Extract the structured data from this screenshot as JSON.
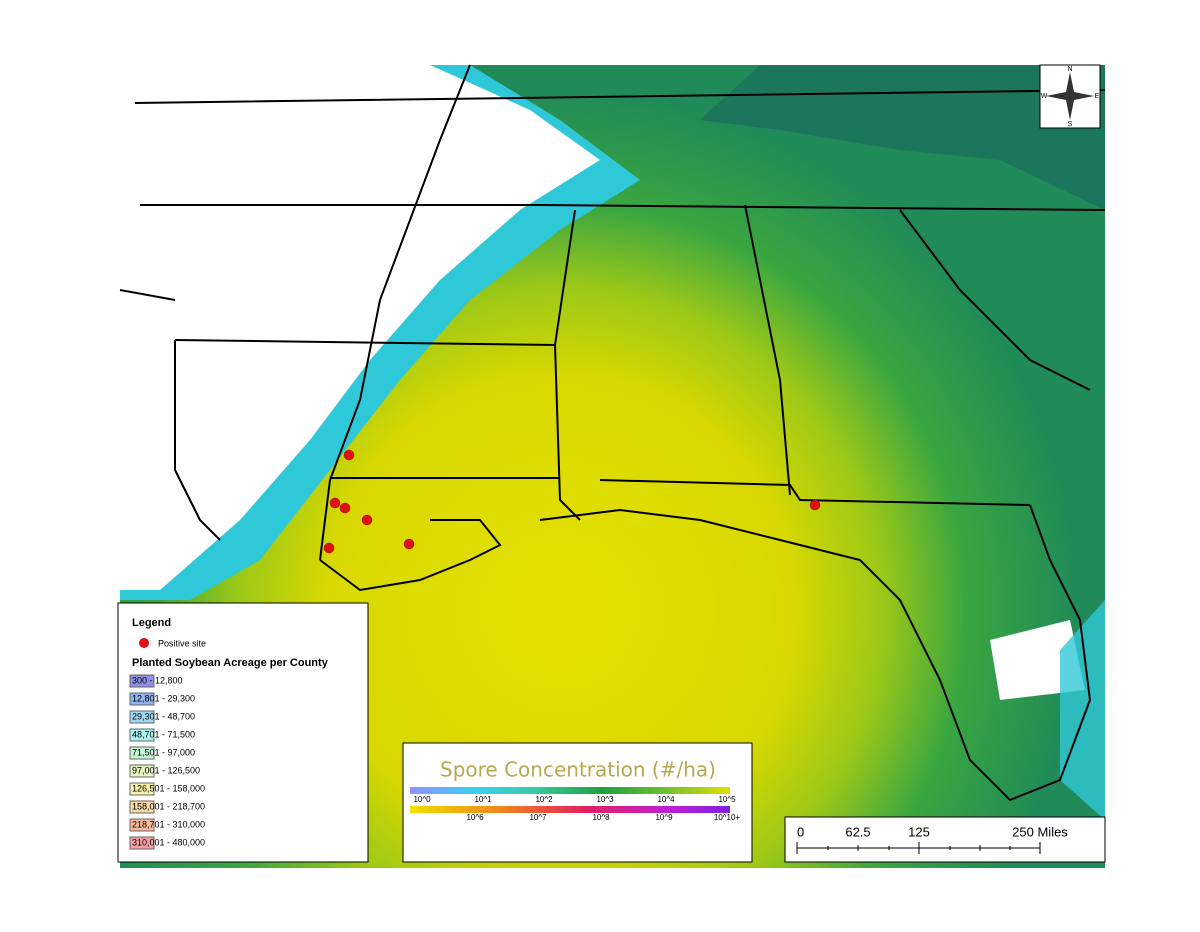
{
  "legend": {
    "title": "Legend",
    "positive_site": "Positive site",
    "acreage_title": "Planted Soybean Acreage per County",
    "classes": [
      {
        "label": "300 - 12,800",
        "color": "#8f8fe8"
      },
      {
        "label": "12,801 - 29,300",
        "color": "#8fb4f0"
      },
      {
        "label": "29,301 - 48,700",
        "color": "#9fd8f4"
      },
      {
        "label": "48,701 - 71,500",
        "color": "#a8f2f0"
      },
      {
        "label": "71,501 - 97,000",
        "color": "#c4f5d4"
      },
      {
        "label": "97,001 - 126,500",
        "color": "#e4f5c0"
      },
      {
        "label": "126,501 - 158,000",
        "color": "#f8f2a8"
      },
      {
        "label": "158,001 - 218,700",
        "color": "#f8d8a4"
      },
      {
        "label": "218,701 - 310,000",
        "color": "#f8b898"
      },
      {
        "label": "310,001 - 480,000",
        "color": "#f4a0a0"
      }
    ]
  },
  "spore_scale": {
    "title": "Spore Concentration (#/ha)",
    "upper_labels": [
      "10^0",
      "10^1",
      "10^2",
      "10^3",
      "10^4",
      "10^5"
    ],
    "lower_labels": [
      "10^6",
      "10^7",
      "10^8",
      "10^9",
      "10^10+"
    ]
  },
  "scale_bar": {
    "labels": [
      "0",
      "62.5",
      "125",
      "250 Miles"
    ]
  },
  "compass": {
    "n": "N",
    "s": "S",
    "e": "E",
    "w": "W"
  }
}
